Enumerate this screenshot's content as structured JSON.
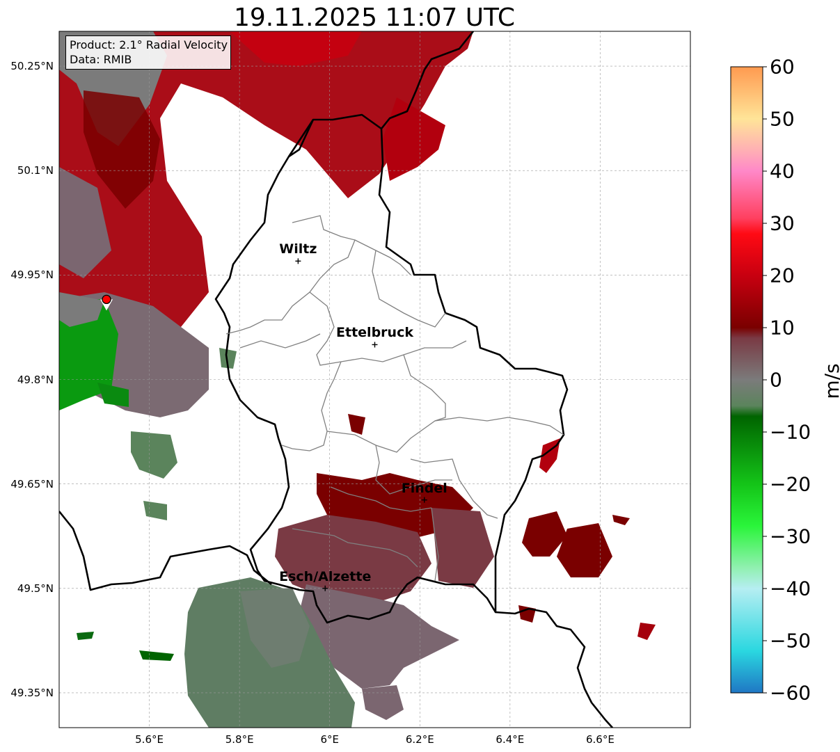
{
  "title": "19.11.2025 11:07 UTC",
  "info_box": {
    "product": "Product: 2.1° Radial Velocity",
    "data_source": "Data: RMIB"
  },
  "map": {
    "lon_range": [
      5.4,
      6.8
    ],
    "lat_range": [
      49.3,
      50.3
    ],
    "lat_ticks": [
      "50.25°N",
      "50.1°N",
      "49.95°N",
      "49.8°N",
      "49.65°N",
      "49.5°N",
      "49.35°N"
    ],
    "lon_ticks": [
      "5.6°E",
      "5.8°E",
      "6°E",
      "6.2°E",
      "6.4°E",
      "6.6°E"
    ],
    "grid": true,
    "radar_site": {
      "lon": 5.505,
      "lat": 49.915,
      "marker_color": "#ff0000"
    },
    "cities": [
      {
        "name": "Wiltz",
        "lon": 5.93,
        "lat": 49.97
      },
      {
        "name": "Ettelbruck",
        "lon": 6.1,
        "lat": 49.85
      },
      {
        "name": "Findel",
        "lon": 6.21,
        "lat": 49.627
      },
      {
        "name": "Esch/Alzette",
        "lon": 5.99,
        "lat": 49.5
      }
    ]
  },
  "colorbar": {
    "unit": "m/s",
    "ticks": [
      "60",
      "50",
      "40",
      "30",
      "20",
      "10",
      "0",
      "−10",
      "−20",
      "−30",
      "−40",
      "−50",
      "−60"
    ],
    "range": [
      -60,
      60
    ],
    "stops": [
      {
        "v": -60,
        "c": "#1f77c4"
      },
      {
        "v": -52,
        "c": "#2ad7e0"
      },
      {
        "v": -40,
        "c": "#b6eef2"
      },
      {
        "v": -36,
        "c": "#90f0b0"
      },
      {
        "v": -28,
        "c": "#2af53a"
      },
      {
        "v": -20,
        "c": "#14c418"
      },
      {
        "v": -7,
        "c": "#006400"
      },
      {
        "v": -5,
        "c": "#5b845c"
      },
      {
        "v": 0,
        "c": "#7b7b7b"
      },
      {
        "v": 8,
        "c": "#7a3a44"
      },
      {
        "v": 10,
        "c": "#7a0000"
      },
      {
        "v": 20,
        "c": "#c80010"
      },
      {
        "v": 28,
        "c": "#ff0a14"
      },
      {
        "v": 31,
        "c": "#ff4060"
      },
      {
        "v": 40,
        "c": "#ff88c8"
      },
      {
        "v": 44,
        "c": "#ffb0b4"
      },
      {
        "v": 50,
        "c": "#ffe498"
      },
      {
        "v": 60,
        "c": "#ff9a50"
      }
    ]
  }
}
